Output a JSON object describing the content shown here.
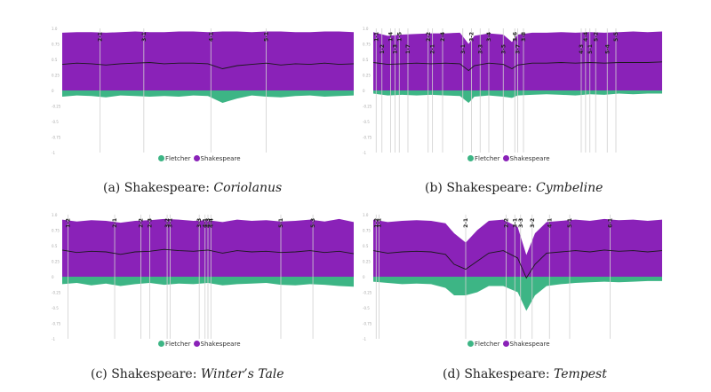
{
  "colors": {
    "fletcher": "#3db585",
    "shakespeare": "#8a22b8",
    "guideline": "#d0d0d0",
    "trace": "#1a1a1a"
  },
  "legend": {
    "fletcher_label": "Fletcher",
    "shakespeare_label": "Shakespeare"
  },
  "chart_data": [
    {
      "type": "area",
      "caption_prefix": "(a) Shakespeare: ",
      "caption_title": "Coriolanus",
      "ylim": [
        -1,
        1
      ],
      "y_ticks": [
        "1.0",
        "0.75",
        "0.5",
        "0.25",
        "0",
        "-0.25",
        "-0.5",
        "-0.75",
        "-1"
      ],
      "xlim": [
        0,
        100
      ],
      "scenes": [
        {
          "label": "2-1",
          "x": 13
        },
        {
          "label": "3-1",
          "x": 28
        },
        {
          "label": "4-1",
          "x": 51
        },
        {
          "label": "5-1",
          "x": 70
        }
      ],
      "x": [
        0,
        5,
        10,
        15,
        20,
        25,
        30,
        35,
        40,
        45,
        50,
        55,
        60,
        65,
        70,
        75,
        80,
        85,
        90,
        95,
        100
      ],
      "upper": [
        0.93,
        0.94,
        0.94,
        0.93,
        0.94,
        0.95,
        0.94,
        0.94,
        0.95,
        0.95,
        0.94,
        0.95,
        0.95,
        0.94,
        0.95,
        0.95,
        0.94,
        0.94,
        0.95,
        0.95,
        0.94
      ],
      "lower": [
        -0.1,
        -0.08,
        -0.09,
        -0.11,
        -0.08,
        -0.09,
        -0.1,
        -0.09,
        -0.1,
        -0.08,
        -0.09,
        -0.2,
        -0.13,
        -0.08,
        -0.1,
        -0.11,
        -0.09,
        -0.08,
        -0.1,
        -0.09,
        -0.08
      ],
      "trace": [
        0.42,
        0.44,
        0.43,
        0.41,
        0.43,
        0.44,
        0.45,
        0.43,
        0.44,
        0.44,
        0.43,
        0.35,
        0.4,
        0.42,
        0.44,
        0.41,
        0.43,
        0.42,
        0.44,
        0.42,
        0.43
      ]
    },
    {
      "type": "area",
      "caption_prefix": "(b) Shakespeare: ",
      "caption_title": "Cymbeline",
      "ylim": [
        -1,
        1
      ],
      "y_ticks": [
        "1.0",
        "0.75",
        "0.5",
        "0.25",
        "0",
        "-0.25",
        "-0.5",
        "-0.75",
        "-1"
      ],
      "xlim": [
        0,
        100
      ],
      "scenes": [
        {
          "label": "1-1",
          "x": 1
        },
        {
          "label": "1-2",
          "x": 3
        },
        {
          "label": "1-4",
          "x": 6
        },
        {
          "label": "1-3",
          "x": 7.5
        },
        {
          "label": "1-5",
          "x": 9
        },
        {
          "label": "1-7",
          "x": 12
        },
        {
          "label": "2-2",
          "x": 19
        },
        {
          "label": "2-1",
          "x": 20.5
        },
        {
          "label": "2-4",
          "x": 24
        },
        {
          "label": "3-1",
          "x": 31
        },
        {
          "label": "3-2",
          "x": 34
        },
        {
          "label": "3-3",
          "x": 37
        },
        {
          "label": "3-4",
          "x": 40
        },
        {
          "label": "3-5",
          "x": 45
        },
        {
          "label": "3-6",
          "x": 49
        },
        {
          "label": "3-7",
          "x": 50
        },
        {
          "label": "3-8",
          "x": 52
        },
        {
          "label": "4-3",
          "x": 72
        },
        {
          "label": "4-4",
          "x": 73.5
        },
        {
          "label": "5-1",
          "x": 75
        },
        {
          "label": "5-2",
          "x": 77
        },
        {
          "label": "5-4",
          "x": 81
        },
        {
          "label": "5-5",
          "x": 84
        }
      ],
      "x": [
        0,
        5,
        10,
        15,
        20,
        25,
        30,
        33,
        35,
        40,
        45,
        48,
        50,
        55,
        60,
        65,
        70,
        75,
        80,
        85,
        90,
        95,
        100
      ],
      "upper": [
        0.94,
        0.88,
        0.9,
        0.91,
        0.92,
        0.92,
        0.93,
        0.75,
        0.88,
        0.92,
        0.9,
        0.78,
        0.9,
        0.93,
        0.93,
        0.94,
        0.93,
        0.94,
        0.93,
        0.94,
        0.95,
        0.94,
        0.95
      ],
      "lower": [
        -0.05,
        -0.08,
        -0.07,
        -0.08,
        -0.07,
        -0.08,
        -0.09,
        -0.2,
        -0.1,
        -0.08,
        -0.1,
        -0.12,
        -0.08,
        -0.07,
        -0.06,
        -0.07,
        -0.08,
        -0.06,
        -0.07,
        -0.05,
        -0.06,
        -0.05,
        -0.05
      ],
      "trace": [
        0.45,
        0.42,
        0.43,
        0.44,
        0.43,
        0.44,
        0.43,
        0.32,
        0.4,
        0.44,
        0.42,
        0.35,
        0.41,
        0.44,
        0.44,
        0.45,
        0.44,
        0.45,
        0.44,
        0.45,
        0.45,
        0.45,
        0.46
      ]
    },
    {
      "type": "area",
      "caption_prefix": "(c) Shakespeare: ",
      "caption_title": "Winter’s Tale",
      "ylim": [
        -1,
        1
      ],
      "y_ticks": [
        "1.0",
        "0.75",
        "0.5",
        "0.25",
        "0",
        "-0.25",
        "-0.5",
        "-0.75",
        "-1"
      ],
      "xlim": [
        0,
        100
      ],
      "scenes": [
        {
          "label": "1-2",
          "x": 2
        },
        {
          "label": "2-1",
          "x": 18
        },
        {
          "label": "2-2",
          "x": 27
        },
        {
          "label": "2-3",
          "x": 30
        },
        {
          "label": "3-1",
          "x": 37
        },
        {
          "label": "3-2",
          "x": 36
        },
        {
          "label": "3-3",
          "x": 47
        },
        {
          "label": "4-1",
          "x": 49
        },
        {
          "label": "4-3",
          "x": 50
        },
        {
          "label": "4-4",
          "x": 51
        },
        {
          "label": "5-1",
          "x": 75
        },
        {
          "label": "5-3",
          "x": 86
        }
      ],
      "x": [
        0,
        5,
        10,
        15,
        20,
        25,
        30,
        35,
        40,
        45,
        50,
        55,
        60,
        65,
        70,
        75,
        80,
        85,
        90,
        95,
        100
      ],
      "upper": [
        0.92,
        0.89,
        0.91,
        0.9,
        0.87,
        0.9,
        0.91,
        0.93,
        0.92,
        0.9,
        0.91,
        0.88,
        0.92,
        0.9,
        0.91,
        0.89,
        0.9,
        0.92,
        0.89,
        0.93,
        0.88
      ],
      "lower": [
        -0.12,
        -0.1,
        -0.14,
        -0.11,
        -0.15,
        -0.12,
        -0.1,
        -0.13,
        -0.11,
        -0.12,
        -0.1,
        -0.14,
        -0.12,
        -0.11,
        -0.1,
        -0.13,
        -0.14,
        -0.12,
        -0.13,
        -0.15,
        -0.16
      ],
      "trace": [
        0.43,
        0.39,
        0.41,
        0.4,
        0.36,
        0.4,
        0.41,
        0.44,
        0.42,
        0.41,
        0.43,
        0.38,
        0.42,
        0.4,
        0.41,
        0.39,
        0.4,
        0.42,
        0.39,
        0.41,
        0.37
      ]
    },
    {
      "type": "area",
      "caption_prefix": "(d) Shakespeare: ",
      "caption_title": "Tempest",
      "ylim": [
        -1,
        1
      ],
      "y_ticks": [
        "1.0",
        "0.75",
        "0.5",
        "0.25",
        "0",
        "-0.25",
        "-0.5",
        "-0.75",
        "-1"
      ],
      "xlim": [
        0,
        100
      ],
      "scenes": [
        {
          "label": "1-2",
          "x": 1
        },
        {
          "label": "1-1",
          "x": 2
        },
        {
          "label": "2-1",
          "x": 32
        },
        {
          "label": "2-2",
          "x": 46
        },
        {
          "label": "3-1",
          "x": 49
        },
        {
          "label": "3-3",
          "x": 51
        },
        {
          "label": "3-2",
          "x": 55
        },
        {
          "label": "4-1",
          "x": 61
        },
        {
          "label": "5-1",
          "x": 68
        },
        {
          "label": "6-1",
          "x": 82
        }
      ],
      "x": [
        0,
        5,
        10,
        15,
        20,
        25,
        28,
        32,
        36,
        40,
        45,
        50,
        53,
        56,
        60,
        65,
        70,
        75,
        80,
        85,
        90,
        95,
        100
      ],
      "upper": [
        0.92,
        0.88,
        0.9,
        0.91,
        0.9,
        0.86,
        0.7,
        0.55,
        0.75,
        0.9,
        0.92,
        0.8,
        0.35,
        0.7,
        0.88,
        0.9,
        0.92,
        0.9,
        0.93,
        0.91,
        0.92,
        0.9,
        0.92
      ],
      "lower": [
        -0.08,
        -0.1,
        -0.12,
        -0.11,
        -0.12,
        -0.18,
        -0.3,
        -0.3,
        -0.25,
        -0.15,
        -0.15,
        -0.25,
        -0.55,
        -0.3,
        -0.15,
        -0.12,
        -0.1,
        -0.09,
        -0.08,
        -0.09,
        -0.08,
        -0.07,
        -0.07
      ],
      "trace": [
        0.42,
        0.38,
        0.4,
        0.41,
        0.4,
        0.36,
        0.2,
        0.12,
        0.25,
        0.38,
        0.42,
        0.3,
        -0.02,
        0.2,
        0.38,
        0.4,
        0.42,
        0.4,
        0.43,
        0.41,
        0.42,
        0.4,
        0.42
      ]
    }
  ]
}
